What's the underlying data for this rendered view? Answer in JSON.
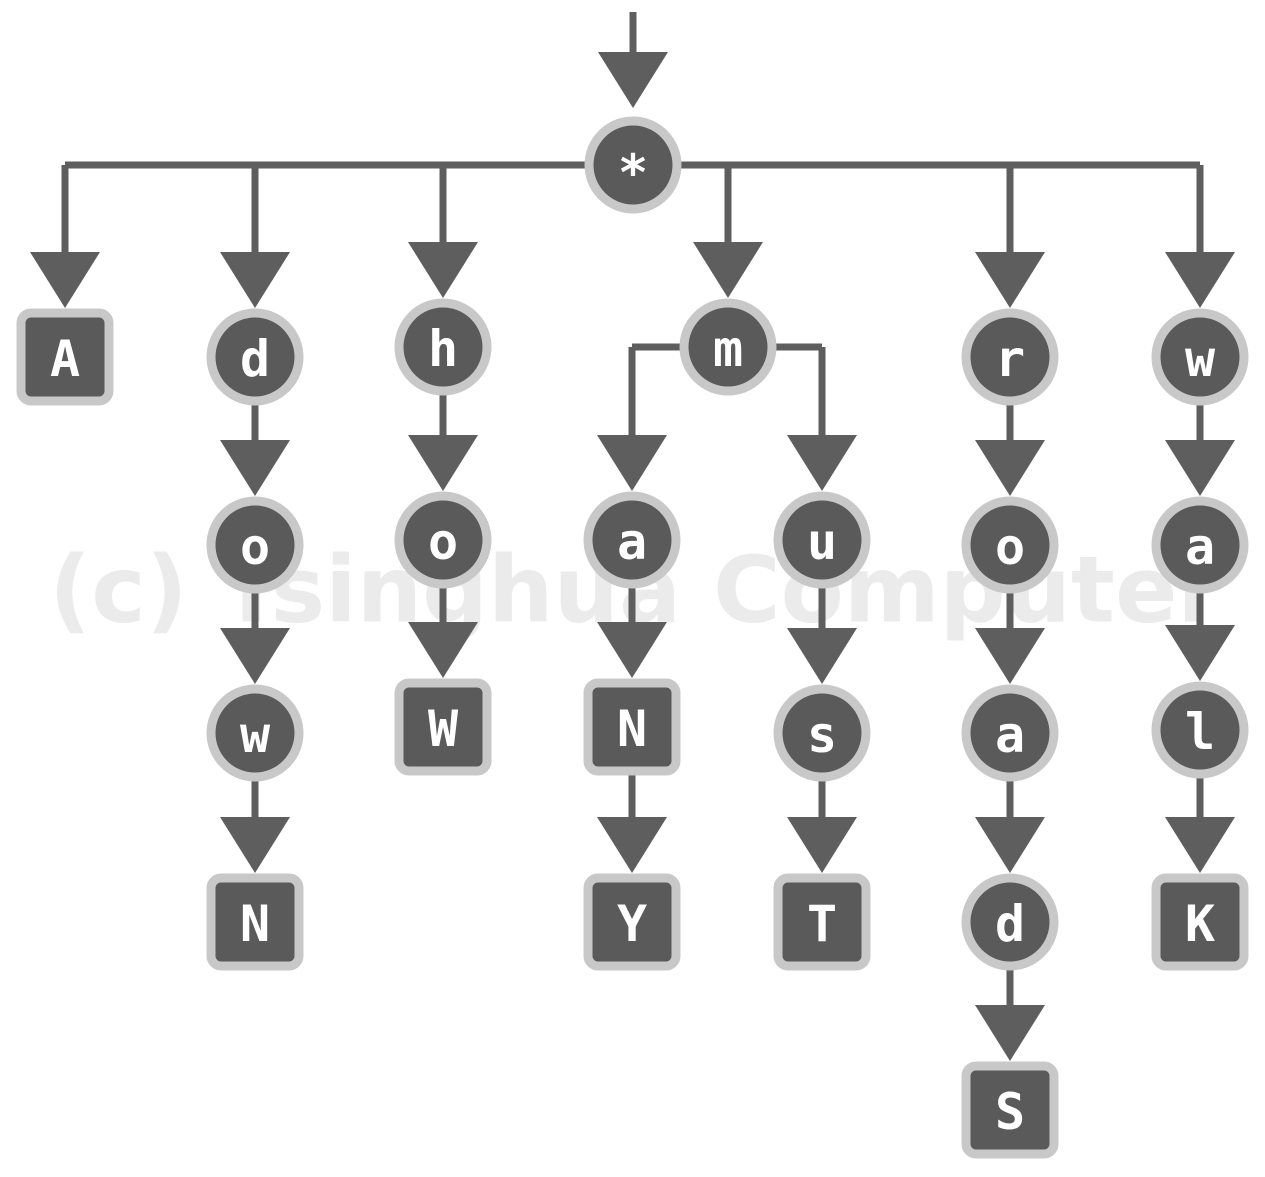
{
  "watermark": "(c) Tsinghua Computer",
  "colors": {
    "node_fill": "#5a5a5a",
    "node_ring": "#c8c8c8",
    "edge": "#5e5e5e",
    "label": "#ffffff"
  },
  "root": {
    "id": "root",
    "label": "*",
    "shape": "circle"
  },
  "children": [
    {
      "id": "A",
      "label": "A",
      "shape": "square",
      "children": []
    },
    {
      "id": "d",
      "label": "d",
      "shape": "circle",
      "children": [
        {
          "id": "do",
          "label": "o",
          "shape": "circle",
          "children": [
            {
              "id": "dow",
              "label": "w",
              "shape": "circle",
              "children": [
                {
                  "id": "dowN",
                  "label": "N",
                  "shape": "square",
                  "children": []
                }
              ]
            }
          ]
        }
      ]
    },
    {
      "id": "h",
      "label": "h",
      "shape": "circle",
      "children": [
        {
          "id": "ho",
          "label": "o",
          "shape": "circle",
          "children": [
            {
              "id": "hoW",
              "label": "W",
              "shape": "square",
              "children": []
            }
          ]
        }
      ]
    },
    {
      "id": "m",
      "label": "m",
      "shape": "circle",
      "children": [
        {
          "id": "ma",
          "label": "a",
          "shape": "circle",
          "children": [
            {
              "id": "maN",
              "label": "N",
              "shape": "square",
              "children": [
                {
                  "id": "maNY",
                  "label": "Y",
                  "shape": "square",
                  "children": []
                }
              ]
            }
          ]
        },
        {
          "id": "mu",
          "label": "u",
          "shape": "circle",
          "children": [
            {
              "id": "mus",
              "label": "s",
              "shape": "circle",
              "children": [
                {
                  "id": "musT",
                  "label": "T",
                  "shape": "square",
                  "children": []
                }
              ]
            }
          ]
        }
      ]
    },
    {
      "id": "r",
      "label": "r",
      "shape": "circle",
      "children": [
        {
          "id": "ro",
          "label": "o",
          "shape": "circle",
          "children": [
            {
              "id": "roa",
              "label": "a",
              "shape": "circle",
              "children": [
                {
                  "id": "road",
                  "label": "d",
                  "shape": "circle",
                  "children": [
                    {
                      "id": "roadS",
                      "label": "S",
                      "shape": "square",
                      "children": []
                    }
                  ]
                }
              ]
            }
          ]
        }
      ]
    },
    {
      "id": "w",
      "label": "w",
      "shape": "circle",
      "children": [
        {
          "id": "wa",
          "label": "a",
          "shape": "circle",
          "children": [
            {
              "id": "wal",
              "label": "l",
              "shape": "circle",
              "children": [
                {
                  "id": "walK",
                  "label": "K",
                  "shape": "square",
                  "children": []
                }
              ]
            }
          ]
        }
      ]
    }
  ]
}
